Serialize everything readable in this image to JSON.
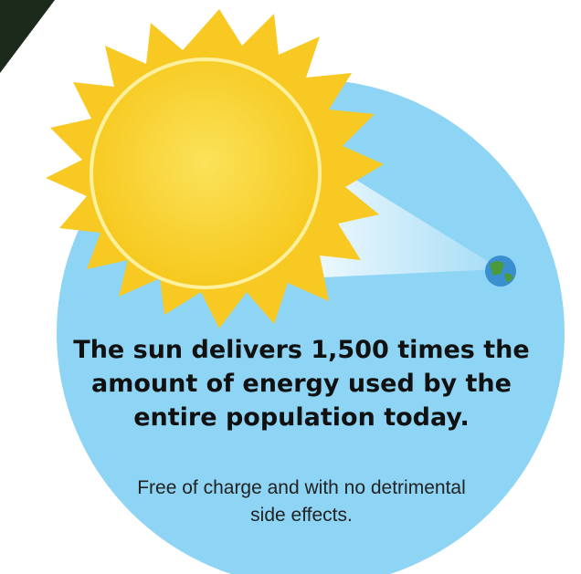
{
  "headline": "The sun delivers 1,500 times the amount of energy used by the entire population today.",
  "subtext": "Free of charge and with no detrimental side effects."
}
